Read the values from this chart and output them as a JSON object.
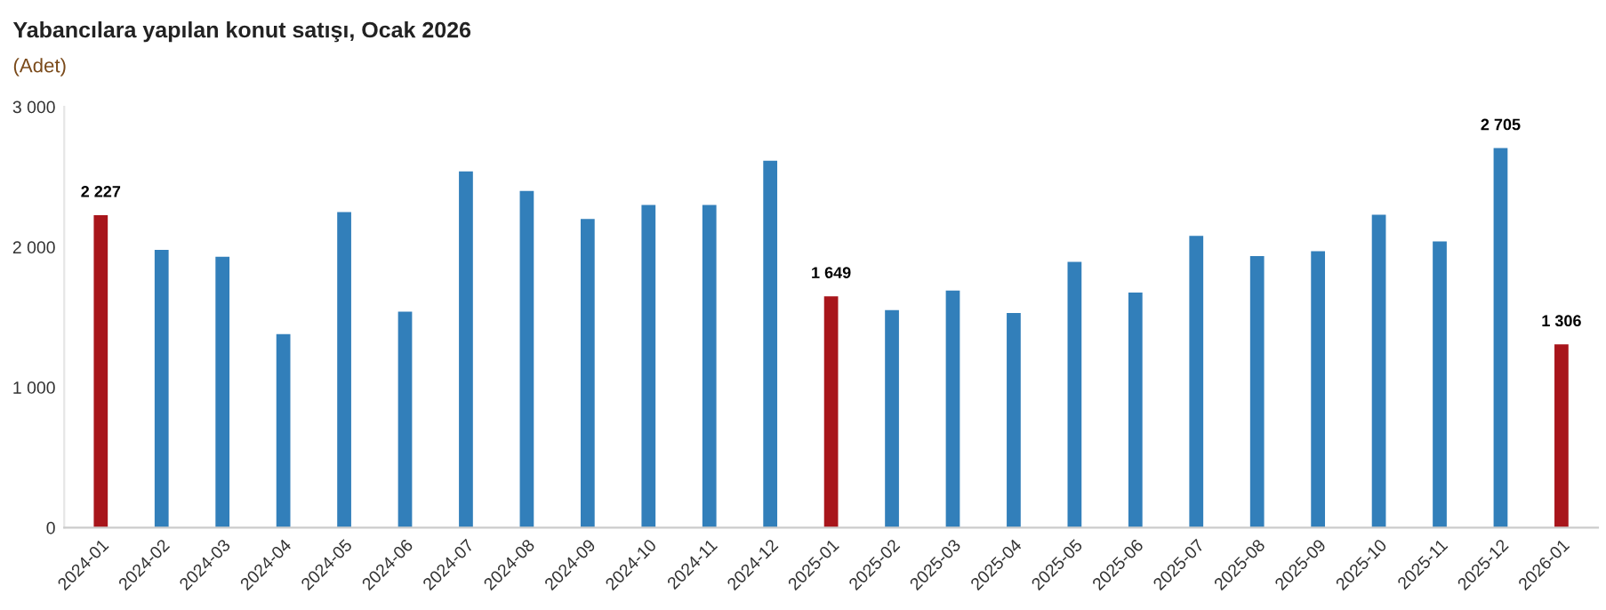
{
  "chart_data": {
    "type": "bar",
    "title": "Yabancılara yapılan konut satışı, Ocak 2026",
    "subtitle": "(Adet)",
    "categories": [
      "2024-01",
      "2024-02",
      "2024-03",
      "2024-04",
      "2024-05",
      "2024-06",
      "2024-07",
      "2024-08",
      "2024-09",
      "2024-10",
      "2024-11",
      "2024-12",
      "2025-01",
      "2025-02",
      "2025-03",
      "2025-04",
      "2025-05",
      "2025-06",
      "2025-07",
      "2025-08",
      "2025-09",
      "2025-10",
      "2025-11",
      "2025-12",
      "2026-01"
    ],
    "values": [
      2227,
      1980,
      1930,
      1380,
      2250,
      1540,
      2540,
      2400,
      2200,
      2300,
      2300,
      2615,
      1649,
      1550,
      1690,
      1530,
      1895,
      1675,
      2080,
      1935,
      1970,
      2230,
      2040,
      2705,
      1306
    ],
    "colors": [
      "#a8151b",
      "#327fba",
      "#327fba",
      "#327fba",
      "#327fba",
      "#327fba",
      "#327fba",
      "#327fba",
      "#327fba",
      "#327fba",
      "#327fba",
      "#327fba",
      "#a8151b",
      "#327fba",
      "#327fba",
      "#327fba",
      "#327fba",
      "#327fba",
      "#327fba",
      "#327fba",
      "#327fba",
      "#327fba",
      "#327fba",
      "#327fba",
      "#a8151b"
    ],
    "value_labels": [
      "2 227",
      null,
      null,
      null,
      null,
      null,
      null,
      null,
      null,
      null,
      null,
      null,
      "1 649",
      null,
      null,
      null,
      null,
      null,
      null,
      null,
      null,
      null,
      null,
      "2 705",
      "1 306"
    ],
    "ylim": [
      0,
      3000
    ],
    "yticks": [
      {
        "value": 0,
        "label": "0"
      },
      {
        "value": 1000,
        "label": "1 000"
      },
      {
        "value": 2000,
        "label": "2 000"
      },
      {
        "value": 3000,
        "label": "3 000"
      }
    ],
    "grid": false,
    "legend": false
  }
}
